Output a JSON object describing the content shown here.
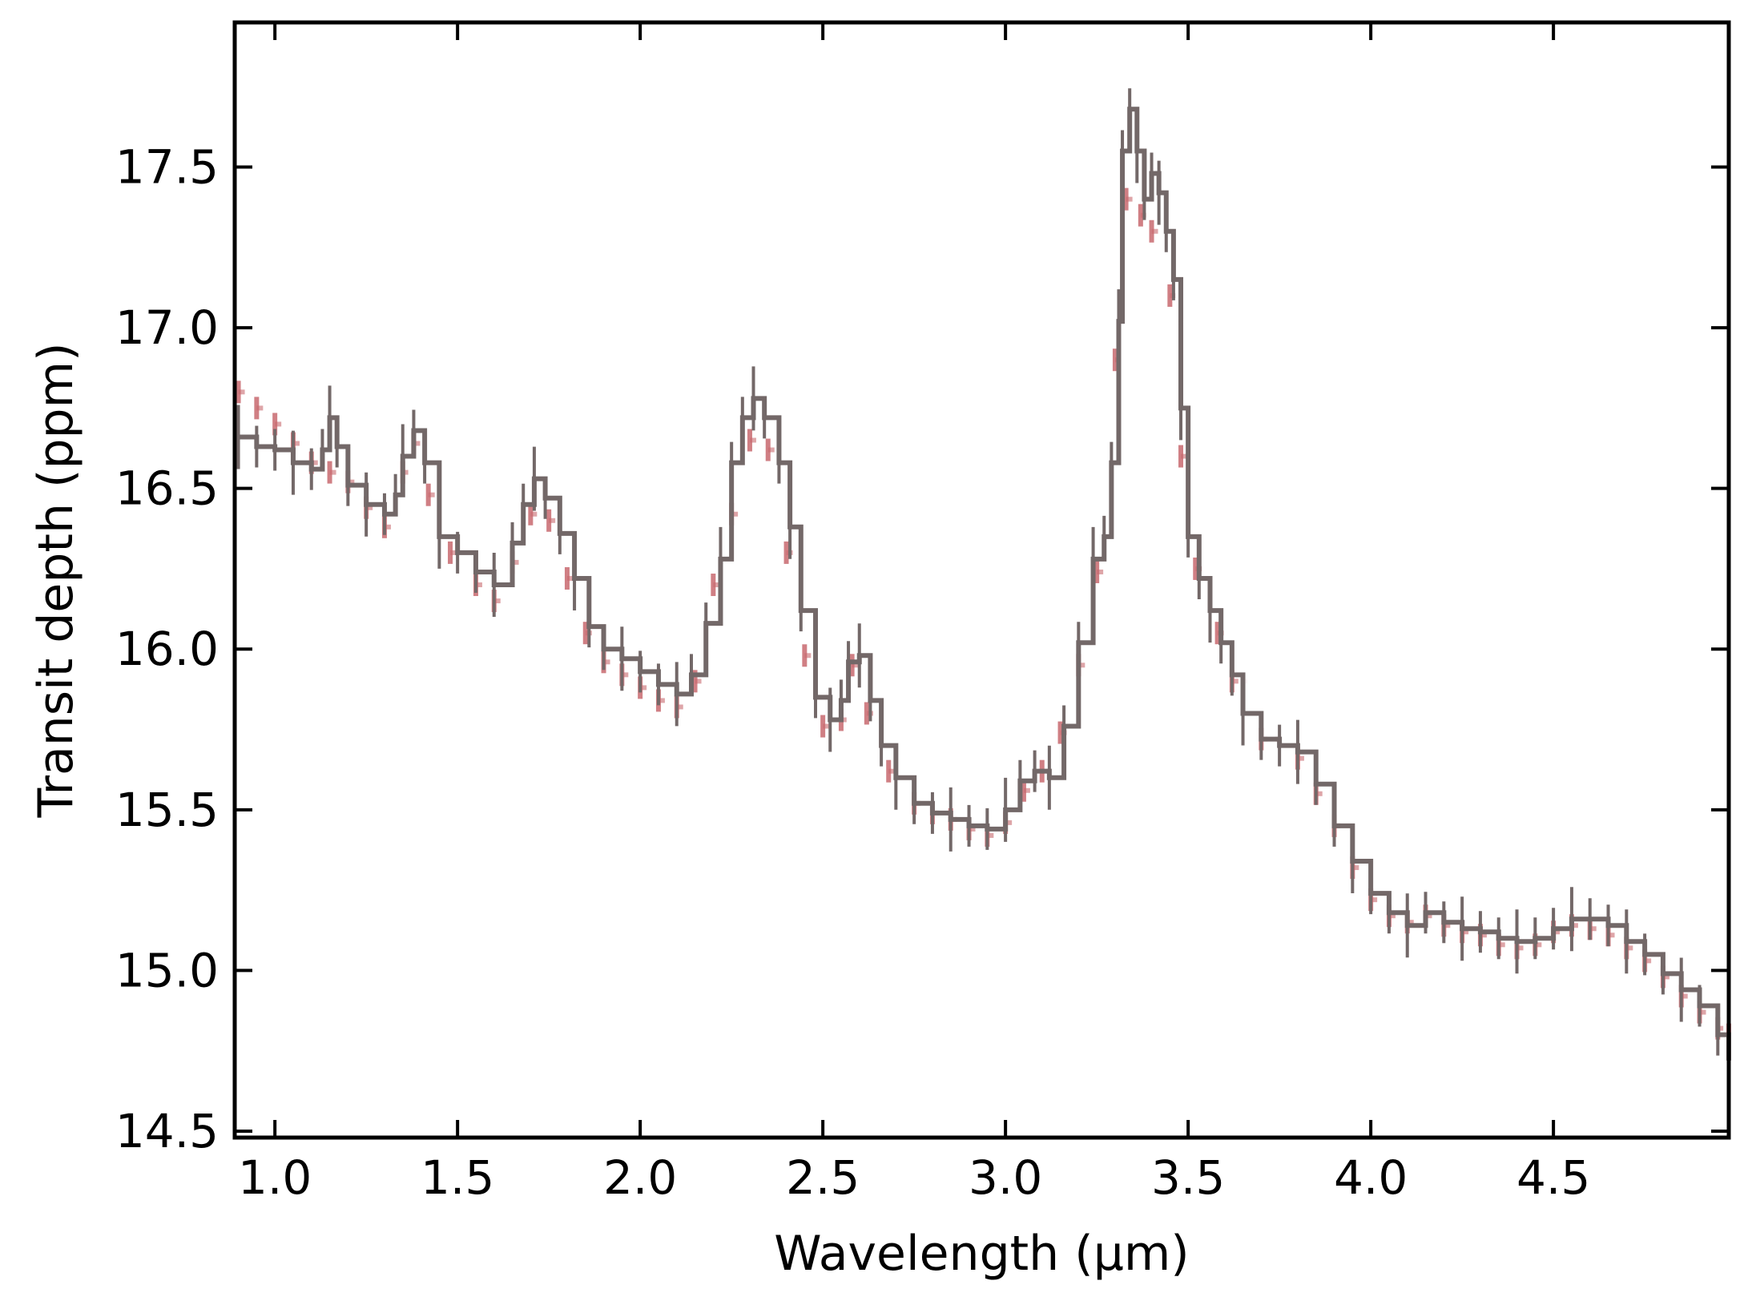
{
  "chart_data": {
    "type": "line",
    "title": "",
    "xlabel": "Wavelength (µm)",
    "ylabel": "Transit depth (ppm)",
    "xlim": [
      0.89,
      4.98
    ],
    "ylim": [
      14.48,
      17.95
    ],
    "xticks": [
      1.0,
      1.5,
      2.0,
      2.5,
      3.0,
      3.5,
      4.0,
      4.5
    ],
    "xtick_labels": [
      "1.0",
      "1.5",
      "2.0",
      "2.5",
      "3.0",
      "3.5",
      "4.0",
      "4.5"
    ],
    "yticks": [
      14.5,
      15.0,
      15.5,
      16.0,
      16.5,
      17.0,
      17.5
    ],
    "ytick_labels": [
      "14.5",
      "15.0",
      "15.5",
      "16.0",
      "16.5",
      "17.0",
      "17.5"
    ],
    "grid": false,
    "legend": "none",
    "colors": {
      "observed": "#736868",
      "model": "#c8696e"
    },
    "series": [
      {
        "style": "step-with-errorbars",
        "color": "#736868",
        "points": [
          [
            0.9,
            16.66
          ],
          [
            0.95,
            16.63
          ],
          [
            1.0,
            16.62
          ],
          [
            1.05,
            16.58
          ],
          [
            1.1,
            16.56
          ],
          [
            1.13,
            16.62
          ],
          [
            1.15,
            16.72
          ],
          [
            1.17,
            16.63
          ],
          [
            1.2,
            16.51
          ],
          [
            1.25,
            16.45
          ],
          [
            1.3,
            16.42
          ],
          [
            1.33,
            16.48
          ],
          [
            1.35,
            16.6
          ],
          [
            1.38,
            16.68
          ],
          [
            1.41,
            16.58
          ],
          [
            1.45,
            16.35
          ],
          [
            1.5,
            16.3
          ],
          [
            1.55,
            16.24
          ],
          [
            1.6,
            16.2
          ],
          [
            1.65,
            16.33
          ],
          [
            1.68,
            16.45
          ],
          [
            1.71,
            16.53
          ],
          [
            1.74,
            16.47
          ],
          [
            1.78,
            16.36
          ],
          [
            1.82,
            16.22
          ],
          [
            1.86,
            16.07
          ],
          [
            1.9,
            16.0
          ],
          [
            1.95,
            15.97
          ],
          [
            2.0,
            15.93
          ],
          [
            2.05,
            15.89
          ],
          [
            2.1,
            15.86
          ],
          [
            2.14,
            15.92
          ],
          [
            2.18,
            16.08
          ],
          [
            2.22,
            16.28
          ],
          [
            2.25,
            16.58
          ],
          [
            2.28,
            16.72
          ],
          [
            2.31,
            16.78
          ],
          [
            2.34,
            16.72
          ],
          [
            2.38,
            16.58
          ],
          [
            2.41,
            16.38
          ],
          [
            2.44,
            16.12
          ],
          [
            2.48,
            15.85
          ],
          [
            2.52,
            15.78
          ],
          [
            2.55,
            15.84
          ],
          [
            2.57,
            15.96
          ],
          [
            2.6,
            15.98
          ],
          [
            2.63,
            15.84
          ],
          [
            2.66,
            15.7
          ],
          [
            2.7,
            15.6
          ],
          [
            2.75,
            15.52
          ],
          [
            2.8,
            15.49
          ],
          [
            2.85,
            15.47
          ],
          [
            2.9,
            15.45
          ],
          [
            2.95,
            15.44
          ],
          [
            3.0,
            15.5
          ],
          [
            3.04,
            15.59
          ],
          [
            3.08,
            15.62
          ],
          [
            3.12,
            15.6
          ],
          [
            3.16,
            15.76
          ],
          [
            3.2,
            16.02
          ],
          [
            3.24,
            16.28
          ],
          [
            3.27,
            16.35
          ],
          [
            3.29,
            16.58
          ],
          [
            3.31,
            17.02
          ],
          [
            3.32,
            17.55
          ],
          [
            3.34,
            17.68
          ],
          [
            3.36,
            17.55
          ],
          [
            3.38,
            17.4
          ],
          [
            3.4,
            17.48
          ],
          [
            3.42,
            17.42
          ],
          [
            3.44,
            17.3
          ],
          [
            3.46,
            17.15
          ],
          [
            3.48,
            16.75
          ],
          [
            3.5,
            16.35
          ],
          [
            3.53,
            16.22
          ],
          [
            3.56,
            16.12
          ],
          [
            3.59,
            16.02
          ],
          [
            3.62,
            15.92
          ],
          [
            3.65,
            15.8
          ],
          [
            3.7,
            15.72
          ],
          [
            3.75,
            15.7
          ],
          [
            3.8,
            15.68
          ],
          [
            3.85,
            15.58
          ],
          [
            3.9,
            15.45
          ],
          [
            3.95,
            15.34
          ],
          [
            4.0,
            15.24
          ],
          [
            4.05,
            15.18
          ],
          [
            4.1,
            15.14
          ],
          [
            4.15,
            15.18
          ],
          [
            4.2,
            15.15
          ],
          [
            4.25,
            15.13
          ],
          [
            4.3,
            15.12
          ],
          [
            4.35,
            15.1
          ],
          [
            4.4,
            15.09
          ],
          [
            4.45,
            15.1
          ],
          [
            4.5,
            15.13
          ],
          [
            4.55,
            15.16
          ],
          [
            4.6,
            15.16
          ],
          [
            4.65,
            15.14
          ],
          [
            4.7,
            15.09
          ],
          [
            4.75,
            15.05
          ],
          [
            4.8,
            14.99
          ],
          [
            4.85,
            14.94
          ],
          [
            4.9,
            14.89
          ],
          [
            4.95,
            14.8
          ],
          [
            4.98,
            14.72
          ]
        ]
      },
      {
        "style": "dashed-model",
        "color": "#c8696e",
        "points": [
          [
            0.9,
            16.8
          ],
          [
            0.95,
            16.75
          ],
          [
            1.0,
            16.7
          ],
          [
            1.05,
            16.64
          ],
          [
            1.1,
            16.58
          ],
          [
            1.15,
            16.55
          ],
          [
            1.2,
            16.52
          ],
          [
            1.25,
            16.44
          ],
          [
            1.3,
            16.38
          ],
          [
            1.35,
            16.55
          ],
          [
            1.38,
            16.64
          ],
          [
            1.42,
            16.48
          ],
          [
            1.48,
            16.3
          ],
          [
            1.55,
            16.2
          ],
          [
            1.6,
            16.15
          ],
          [
            1.65,
            16.27
          ],
          [
            1.7,
            16.42
          ],
          [
            1.75,
            16.4
          ],
          [
            1.8,
            16.22
          ],
          [
            1.85,
            16.05
          ],
          [
            1.9,
            15.96
          ],
          [
            1.95,
            15.92
          ],
          [
            2.0,
            15.88
          ],
          [
            2.05,
            15.84
          ],
          [
            2.1,
            15.82
          ],
          [
            2.15,
            15.9
          ],
          [
            2.2,
            16.2
          ],
          [
            2.25,
            16.42
          ],
          [
            2.3,
            16.65
          ],
          [
            2.35,
            16.62
          ],
          [
            2.4,
            16.3
          ],
          [
            2.45,
            15.98
          ],
          [
            2.5,
            15.76
          ],
          [
            2.55,
            15.78
          ],
          [
            2.58,
            15.95
          ],
          [
            2.62,
            15.8
          ],
          [
            2.68,
            15.62
          ],
          [
            2.75,
            15.52
          ],
          [
            2.8,
            15.49
          ],
          [
            2.85,
            15.47
          ],
          [
            2.9,
            15.44
          ],
          [
            2.95,
            15.42
          ],
          [
            3.0,
            15.46
          ],
          [
            3.05,
            15.56
          ],
          [
            3.1,
            15.62
          ],
          [
            3.15,
            15.74
          ],
          [
            3.2,
            15.95
          ],
          [
            3.25,
            16.24
          ],
          [
            3.3,
            16.9
          ],
          [
            3.33,
            17.4
          ],
          [
            3.37,
            17.35
          ],
          [
            3.4,
            17.3
          ],
          [
            3.45,
            17.1
          ],
          [
            3.48,
            16.6
          ],
          [
            3.52,
            16.25
          ],
          [
            3.58,
            16.05
          ],
          [
            3.62,
            15.9
          ],
          [
            3.7,
            15.72
          ],
          [
            3.8,
            15.66
          ],
          [
            3.85,
            15.55
          ],
          [
            3.9,
            15.45
          ],
          [
            3.95,
            15.32
          ],
          [
            4.0,
            15.22
          ],
          [
            4.05,
            15.17
          ],
          [
            4.1,
            15.15
          ],
          [
            4.15,
            15.17
          ],
          [
            4.2,
            15.14
          ],
          [
            4.25,
            15.12
          ],
          [
            4.3,
            15.11
          ],
          [
            4.35,
            15.08
          ],
          [
            4.4,
            15.07
          ],
          [
            4.45,
            15.08
          ],
          [
            4.5,
            15.12
          ],
          [
            4.55,
            15.14
          ],
          [
            4.6,
            15.13
          ],
          [
            4.65,
            15.11
          ],
          [
            4.7,
            15.07
          ],
          [
            4.75,
            15.03
          ],
          [
            4.8,
            14.98
          ],
          [
            4.85,
            14.92
          ],
          [
            4.9,
            14.87
          ],
          [
            4.95,
            14.82
          ],
          [
            4.98,
            14.8
          ]
        ]
      }
    ]
  }
}
